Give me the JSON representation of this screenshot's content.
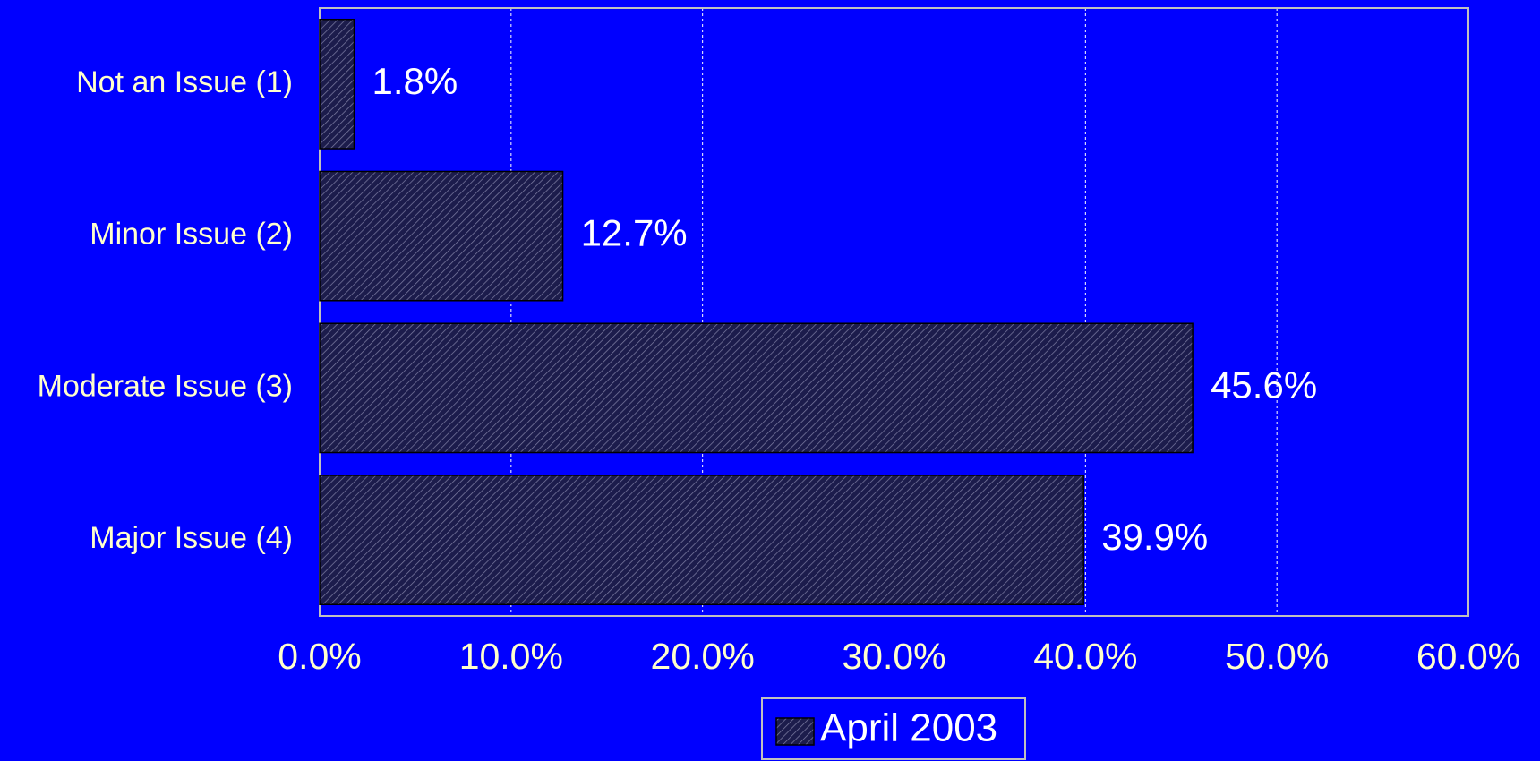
{
  "chart_data": {
    "type": "bar",
    "orientation": "horizontal",
    "categories": [
      "Not an Issue (1)",
      "Minor Issue (2)",
      "Moderate Issue (3)",
      "Major Issue (4)"
    ],
    "series": [
      {
        "name": "April 2003",
        "color": "#1c1c4c",
        "values": [
          1.8,
          12.7,
          45.6,
          39.9
        ],
        "value_labels": [
          "1.8%",
          "12.7%",
          "45.6%",
          "39.9%"
        ]
      }
    ],
    "xlim": [
      0,
      60
    ],
    "xticks": [
      {
        "value": 0,
        "label": "0.0%"
      },
      {
        "value": 10,
        "label": "10.0%"
      },
      {
        "value": 20,
        "label": "20.0%"
      },
      {
        "value": 30,
        "label": "30.0%"
      },
      {
        "value": 40,
        "label": "40.0%"
      },
      {
        "value": 50,
        "label": "50.0%"
      },
      {
        "value": 60,
        "label": "60.0%"
      }
    ],
    "grid": true,
    "legend": "bottom"
  }
}
